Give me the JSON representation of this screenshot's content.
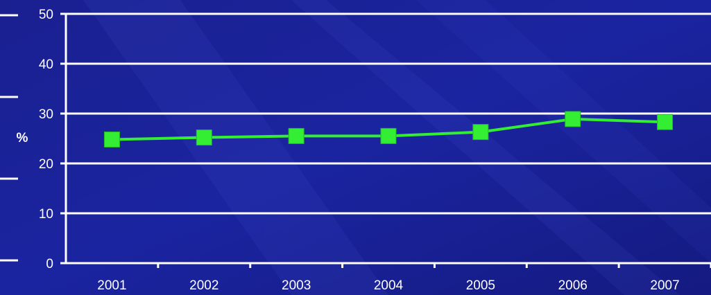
{
  "chart_data": {
    "type": "line",
    "title": "",
    "xlabel": "",
    "ylabel": "%",
    "x": [
      "2001",
      "2002",
      "2003",
      "2004",
      "2005",
      "2006",
      "2007"
    ],
    "series": [
      {
        "values": [
          24.8,
          25.2,
          25.5,
          25.5,
          26.3,
          28.9,
          28.3
        ]
      }
    ],
    "ylim": [
      0,
      50
    ],
    "yticks": [
      0,
      10,
      20,
      30,
      40,
      50
    ],
    "grid": true,
    "legend": "none",
    "colors": {
      "background": "#1a1f8c",
      "line": "#33ee33",
      "grid": "#ffffff",
      "text": "#ffffff"
    }
  }
}
